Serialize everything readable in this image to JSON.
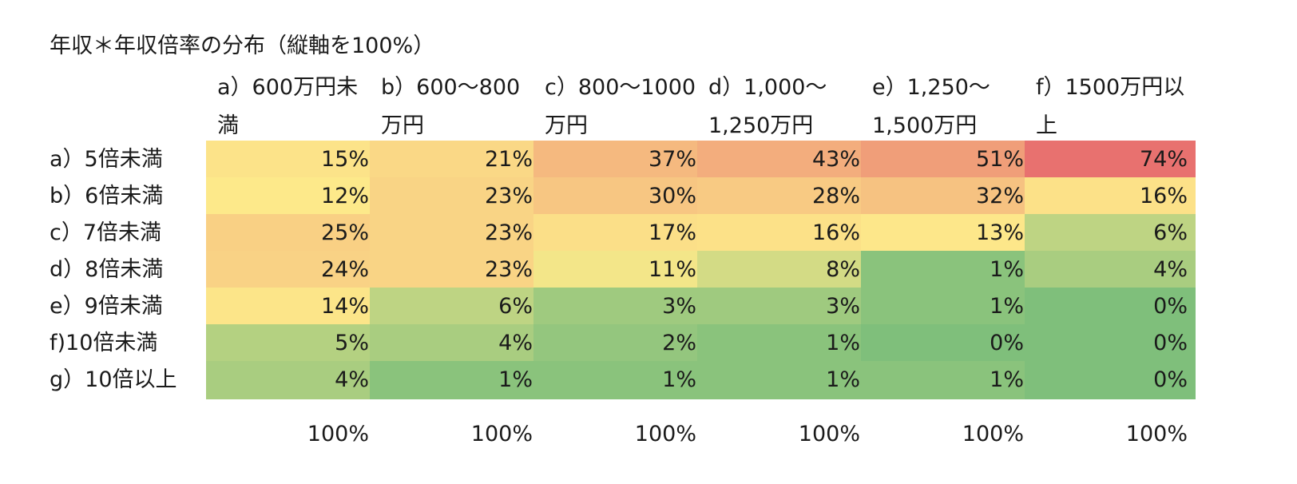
{
  "chart_data": {
    "type": "heatmap",
    "title": "年収＊年収倍率の分布（縦軸を100%）",
    "columns": [
      "a）600万円未満",
      "b）600〜800万円",
      "c）800〜1000万円",
      "d）1,000〜1,250万円",
      "e）1,250〜1,500万円",
      "f）1500万円以上"
    ],
    "rows": [
      "a）5倍未満",
      "b）6倍未満",
      "c）7倍未満",
      "d）8倍未満",
      "e）9倍未満",
      "f)10倍未満",
      "g）10倍以上"
    ],
    "values": [
      [
        "15%",
        "21%",
        "37%",
        "43%",
        "51%",
        "74%"
      ],
      [
        "12%",
        "23%",
        "30%",
        "28%",
        "32%",
        "16%"
      ],
      [
        "25%",
        "23%",
        "17%",
        "16%",
        "13%",
        "6%"
      ],
      [
        "24%",
        "23%",
        "11%",
        "8%",
        "1%",
        "4%"
      ],
      [
        "14%",
        "6%",
        "3%",
        "3%",
        "1%",
        "0%"
      ],
      [
        "5%",
        "4%",
        "2%",
        "1%",
        "0%",
        "0%"
      ],
      [
        "4%",
        "1%",
        "1%",
        "1%",
        "1%",
        "0%"
      ]
    ],
    "totals": [
      "100%",
      "100%",
      "100%",
      "100%",
      "100%",
      "100%"
    ],
    "color_scale": {
      "low": "#7fbf7b",
      "mid": "#fde98a",
      "high": "#e8716f"
    }
  }
}
